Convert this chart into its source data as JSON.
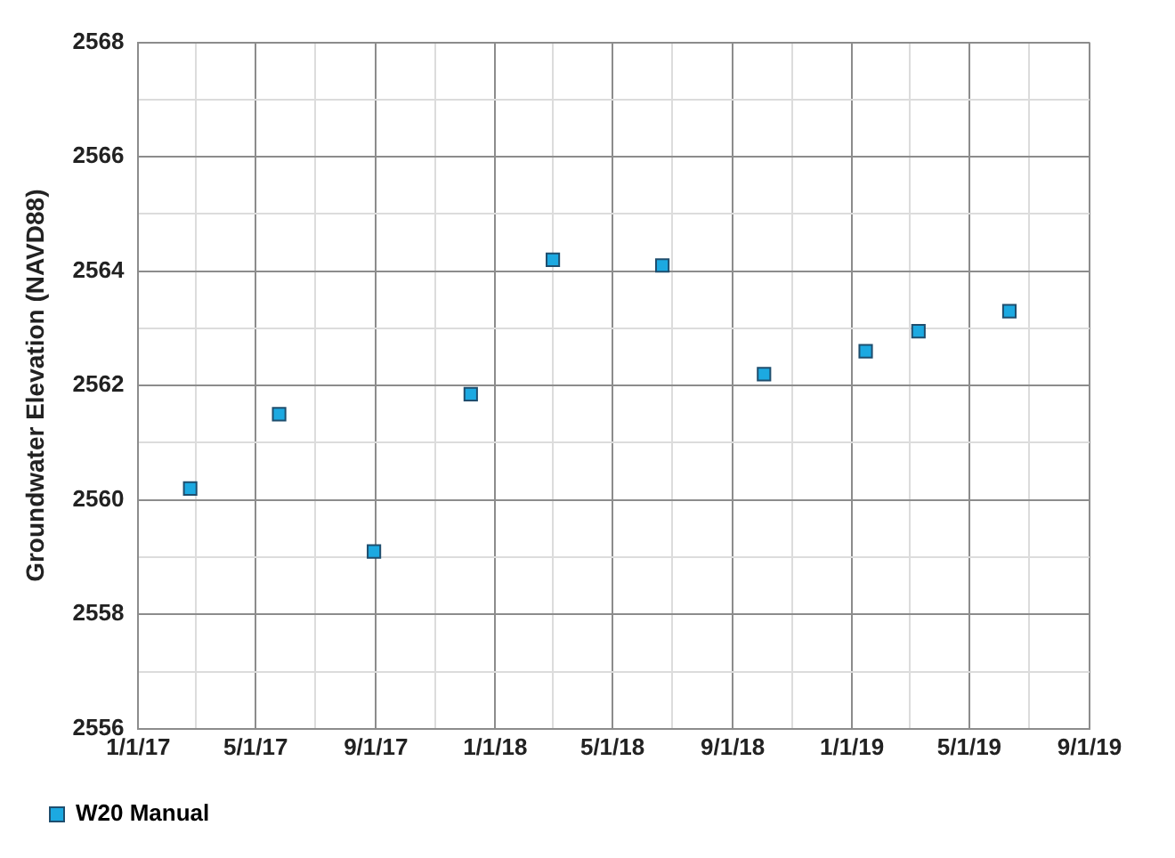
{
  "chart_data": {
    "type": "scatter",
    "ylabel": "Groundwater Elevation (NAVD88)",
    "x": [
      "2017-02-23",
      "2017-05-25",
      "2017-08-30",
      "2017-12-07",
      "2018-03-01",
      "2018-06-21",
      "2018-10-03",
      "2019-01-15",
      "2019-03-10",
      "2019-06-11"
    ],
    "series": [
      {
        "name": "W20 Manual",
        "color": "#1ca9e1",
        "values": [
          2560.2,
          2561.5,
          2559.1,
          2561.85,
          2564.2,
          2564.1,
          2562.2,
          2562.6,
          2562.95,
          2563.3
        ]
      }
    ],
    "xlim": [
      "2017-01-01",
      "2019-09-01"
    ],
    "xticks": [
      {
        "value": "2017-01-01",
        "label": "1/1/17"
      },
      {
        "value": "2017-03-01",
        "label": null
      },
      {
        "value": "2017-05-01",
        "label": "5/1/17"
      },
      {
        "value": "2017-07-01",
        "label": null
      },
      {
        "value": "2017-09-01",
        "label": "9/1/17"
      },
      {
        "value": "2017-11-01",
        "label": null
      },
      {
        "value": "2018-01-01",
        "label": "1/1/18"
      },
      {
        "value": "2018-03-01",
        "label": null
      },
      {
        "value": "2018-05-01",
        "label": "5/1/18"
      },
      {
        "value": "2018-07-01",
        "label": null
      },
      {
        "value": "2018-09-01",
        "label": "9/1/18"
      },
      {
        "value": "2018-11-01",
        "label": null
      },
      {
        "value": "2019-01-01",
        "label": "1/1/19"
      },
      {
        "value": "2019-03-01",
        "label": null
      },
      {
        "value": "2019-05-01",
        "label": "5/1/19"
      },
      {
        "value": "2019-07-01",
        "label": null
      },
      {
        "value": "2019-09-01",
        "label": "9/1/19"
      }
    ],
    "ylim": [
      2556,
      2568
    ],
    "yticks": [
      2556,
      {
        "value": 2557,
        "label": null
      },
      2558,
      {
        "value": 2559,
        "label": null
      },
      2560,
      {
        "value": 2561,
        "label": null
      },
      2562,
      {
        "value": 2563,
        "label": null
      },
      2564,
      {
        "value": 2565,
        "label": null
      },
      2566,
      {
        "value": 2567,
        "label": null
      },
      2568
    ],
    "grid": true,
    "legend": "bottom",
    "marker": "square"
  }
}
